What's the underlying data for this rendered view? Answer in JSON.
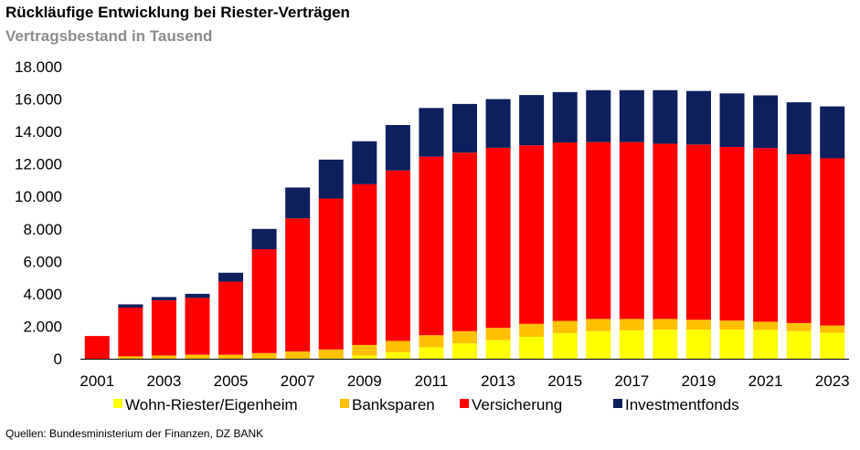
{
  "header": {
    "title": "Rückläufige Entwicklung bei Riester-Verträgen",
    "subtitle": "Vertragsbestand in Tausend"
  },
  "footer": {
    "source": "Quellen: Bundesministerium der Finanzen, DZ BANK"
  },
  "chart_data": {
    "type": "bar",
    "stacked": true,
    "title": "Rückläufige Entwicklung bei Riester-Verträgen",
    "subtitle": "Vertragsbestand in Tausend",
    "xlabel": "",
    "ylabel": "",
    "ylim": [
      0,
      18000
    ],
    "yticks": [
      "0",
      "2.000",
      "4.000",
      "6.000",
      "8.000",
      "10.000",
      "12.000",
      "14.000",
      "16.000",
      "18.000"
    ],
    "xtick_labels": [
      "2001",
      "2003",
      "2005",
      "2007",
      "2009",
      "2011",
      "2013",
      "2015",
      "2017",
      "2019",
      "2021",
      "2023"
    ],
    "grid": false,
    "legend_position": "bottom",
    "categories": [
      "2001",
      "2002",
      "2003",
      "2004",
      "2005",
      "2006",
      "2007",
      "2008",
      "2009",
      "2010",
      "2011",
      "2012",
      "2013",
      "2014",
      "2015",
      "2016",
      "2017",
      "2018",
      "2019",
      "2020",
      "2021",
      "2022",
      "2023"
    ],
    "series": [
      {
        "name": "Wohn-Riester/Eigenheim",
        "color": "#ffff00",
        "values": [
          0,
          0,
          0,
          0,
          0,
          0,
          0,
          20,
          200,
          400,
          700,
          950,
          1150,
          1350,
          1580,
          1700,
          1750,
          1800,
          1800,
          1800,
          1780,
          1700,
          1600
        ]
      },
      {
        "name": "Banksparen",
        "color": "#ffc000",
        "values": [
          0,
          150,
          200,
          250,
          250,
          350,
          450,
          550,
          650,
          700,
          750,
          750,
          750,
          800,
          750,
          750,
          700,
          650,
          600,
          550,
          500,
          500,
          450
        ]
      },
      {
        "name": "Versicherung",
        "color": "#ff0000",
        "values": [
          1400,
          3000,
          3400,
          3500,
          4500,
          6400,
          8200,
          9300,
          9900,
          10500,
          11000,
          11000,
          11100,
          11000,
          11000,
          10900,
          10900,
          10800,
          10800,
          10700,
          10700,
          10400,
          10300
        ]
      },
      {
        "name": "Investmentfonds",
        "color": "#0d1f5c",
        "values": [
          0,
          200,
          200,
          250,
          550,
          1250,
          1900,
          2400,
          2650,
          2800,
          3000,
          3000,
          3000,
          3100,
          3100,
          3200,
          3200,
          3300,
          3300,
          3300,
          3250,
          3200,
          3200
        ]
      }
    ]
  }
}
